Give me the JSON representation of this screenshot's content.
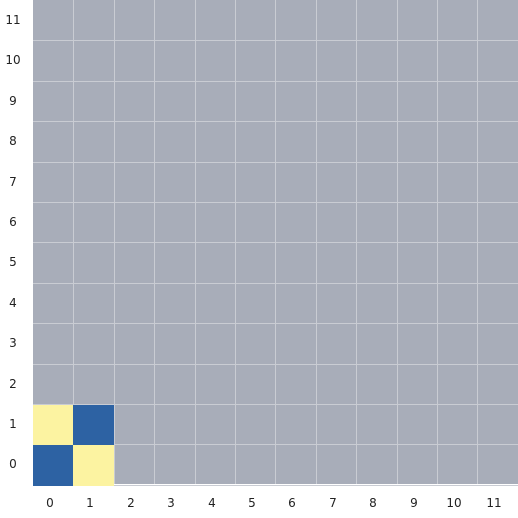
{
  "board": {
    "cols": 12,
    "rows": 12,
    "background_color": "#a8adb9",
    "grid_line_color": "#c9ccd3"
  },
  "x_labels": [
    "0",
    "1",
    "2",
    "3",
    "4",
    "5",
    "6",
    "7",
    "8",
    "9",
    "10",
    "11"
  ],
  "y_labels": [
    "0",
    "1",
    "2",
    "3",
    "4",
    "5",
    "6",
    "7",
    "8",
    "9",
    "10",
    "11"
  ],
  "colors": {
    "blue": "#2d62a3",
    "yellow": "#fcf3a1"
  },
  "cells": [
    {
      "col": 0,
      "row": 0,
      "color": "blue"
    },
    {
      "col": 1,
      "row": 0,
      "color": "yellow"
    },
    {
      "col": 0,
      "row": 1,
      "color": "yellow"
    },
    {
      "col": 1,
      "row": 1,
      "color": "blue"
    }
  ]
}
